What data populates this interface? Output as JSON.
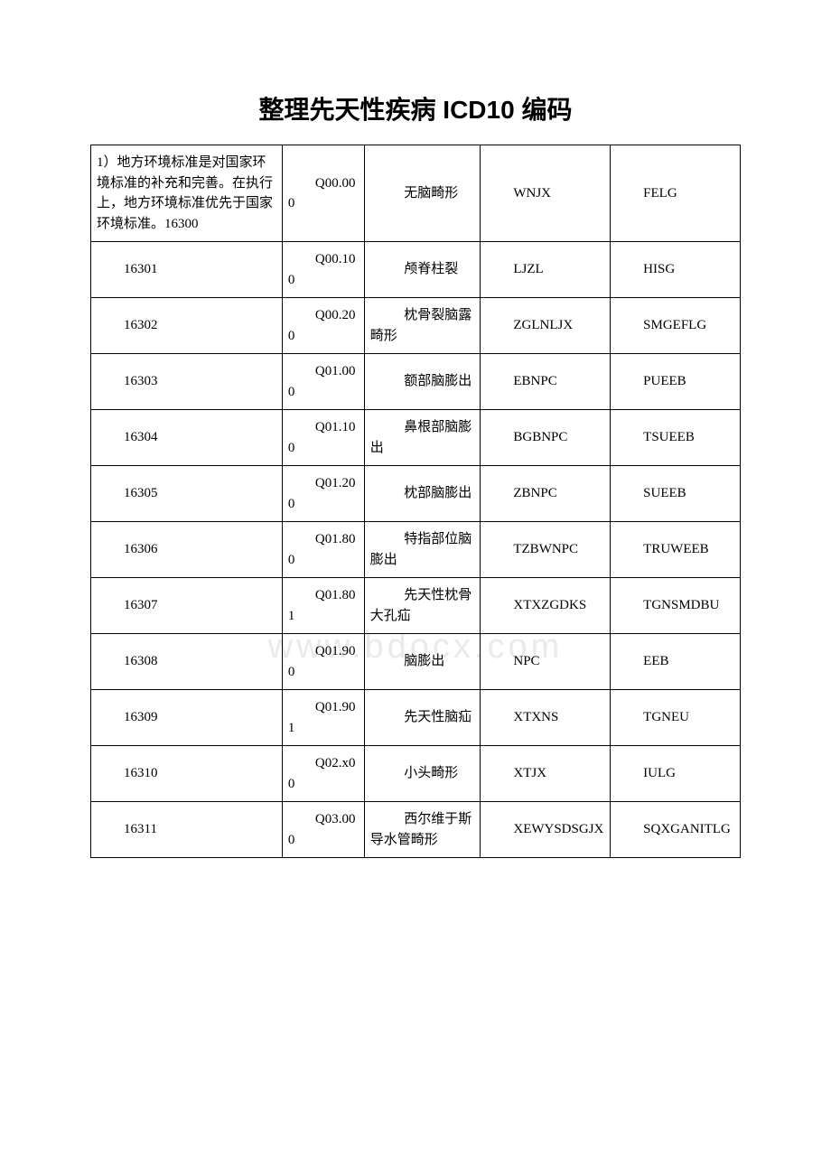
{
  "title": "整理先天性疾病 ICD10 编码",
  "watermark": "www.bdocx.com",
  "table": {
    "rows": [
      {
        "col1": "1）地方环境标准是对国家环境标准的补充和完善。在执行上，地方环境标准优先于国家环境标准。16300",
        "col1_first": true,
        "col2": "Q00.000",
        "col3": "无脑畸形",
        "col4": "WNJX",
        "col5": "FELG"
      },
      {
        "col1": "16301",
        "col2": "Q00.100",
        "col3": "颅脊柱裂",
        "col4": "LJZL",
        "col5": "HISG"
      },
      {
        "col1": "16302",
        "col2": "Q00.200",
        "col3": "枕骨裂脑露畸形",
        "col4": "ZGLNLJX",
        "col5": "SMGEFLG"
      },
      {
        "col1": "16303",
        "col2": "Q01.000",
        "col3": "额部脑膨出",
        "col4": "EBNPC",
        "col5": "PUEEB"
      },
      {
        "col1": "16304",
        "col2": "Q01.100",
        "col3": "鼻根部脑膨出",
        "col4": "BGBNPC",
        "col5": "TSUEEB"
      },
      {
        "col1": "16305",
        "col2": "Q01.200",
        "col3": "枕部脑膨出",
        "col4": "ZBNPC",
        "col5": "SUEEB"
      },
      {
        "col1": "16306",
        "col2": "Q01.800",
        "col3": "特指部位脑膨出",
        "col4": "TZBWNPC",
        "col5": "TRUWEEB"
      },
      {
        "col1": "16307",
        "col2": "Q01.801",
        "col3": "先天性枕骨大孔疝",
        "col4": "XTXZGDKS",
        "col5": "TGNSMDBU"
      },
      {
        "col1": "16308",
        "col2": "Q01.900",
        "col3": "脑膨出",
        "col4": "NPC",
        "col5": "EEB"
      },
      {
        "col1": "16309",
        "col2": "Q01.901",
        "col3": "先天性脑疝",
        "col4": "XTXNS",
        "col5": "TGNEU"
      },
      {
        "col1": "16310",
        "col2": "Q02.x00",
        "col3": "小头畸形",
        "col4": "XTJX",
        "col5": "IULG"
      },
      {
        "col1": "16311",
        "col2": "Q03.000",
        "col3": "西尔维于斯导水管畸形",
        "col4": "XEWYSDSGJX",
        "col5": "SQXGANITLG"
      }
    ]
  },
  "colors": {
    "background": "#ffffff",
    "text": "#000000",
    "border": "#000000",
    "watermark": "#eaeaea"
  }
}
